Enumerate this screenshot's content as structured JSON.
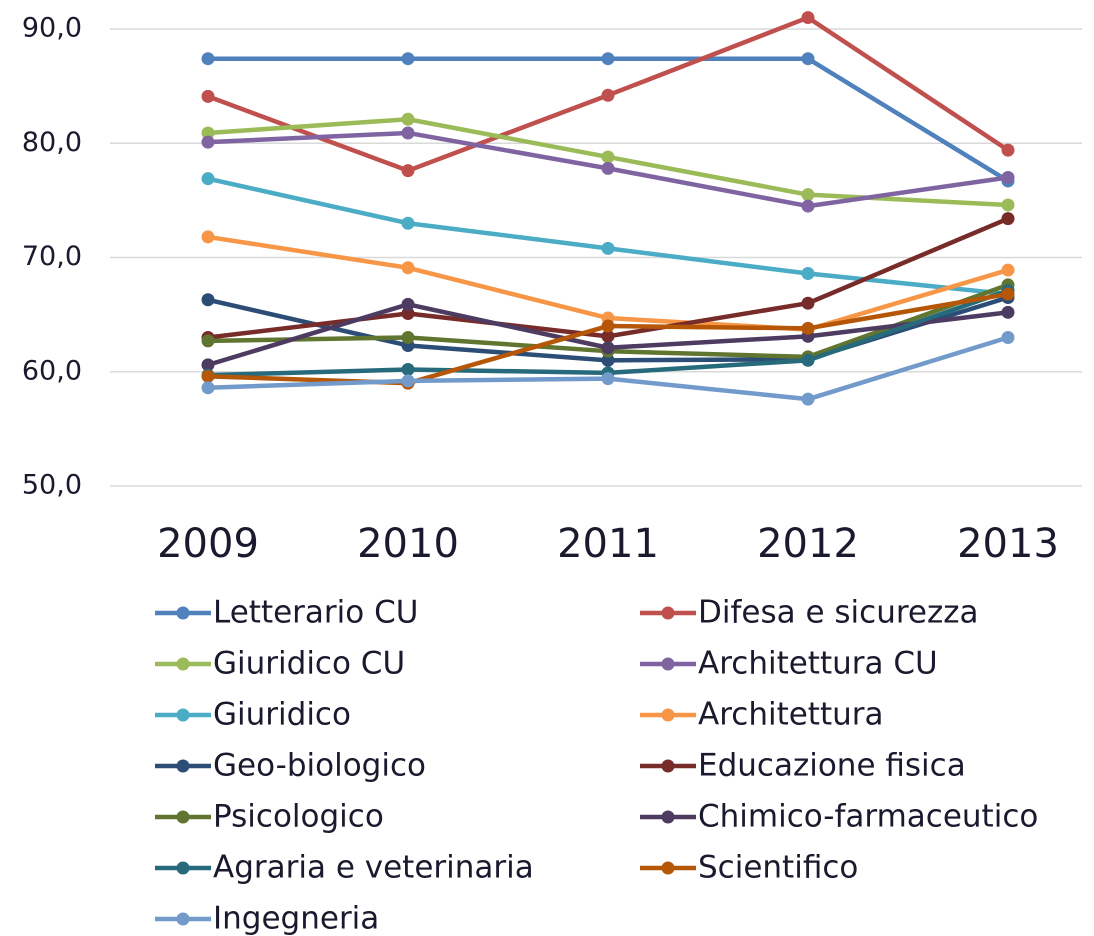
{
  "chart_data": {
    "type": "line",
    "categories": [
      "2009",
      "2010",
      "2011",
      "2012",
      "2013"
    ],
    "ylim": [
      50,
      90
    ],
    "yticks": [
      {
        "value": 50,
        "label": "50,0"
      },
      {
        "value": 60,
        "label": "60,0"
      },
      {
        "value": 70,
        "label": "70,0"
      },
      {
        "value": 80,
        "label": "80,0"
      },
      {
        "value": 90,
        "label": "90,0"
      }
    ],
    "grid": true,
    "legend": "bottom",
    "series": [
      {
        "name": "Letterario CU",
        "color": "#4f81bd",
        "values": [
          87.4,
          87.4,
          87.4,
          87.4,
          76.7
        ]
      },
      {
        "name": "Difesa e sicurezza",
        "color": "#c0504d",
        "values": [
          84.1,
          77.6,
          84.2,
          91.0,
          79.4
        ]
      },
      {
        "name": "Giuridico CU",
        "color": "#9bbb59",
        "values": [
          80.9,
          82.1,
          78.8,
          75.5,
          74.6
        ]
      },
      {
        "name": "Architettura CU",
        "color": "#8064a2",
        "values": [
          80.1,
          80.9,
          77.8,
          74.5,
          77.0
        ]
      },
      {
        "name": "Giuridico",
        "color": "#4bacc6",
        "values": [
          76.9,
          73.0,
          70.8,
          68.6,
          66.8
        ]
      },
      {
        "name": "Architettura",
        "color": "#f79646",
        "values": [
          71.8,
          69.1,
          64.7,
          63.7,
          68.9
        ]
      },
      {
        "name": "Geo-biologico",
        "color": "#2c4d75",
        "values": [
          66.3,
          62.3,
          61.0,
          61.1,
          66.5
        ]
      },
      {
        "name": "Educazione fisica",
        "color": "#772c2a",
        "values": [
          63.0,
          65.1,
          63.1,
          66.0,
          73.4
        ]
      },
      {
        "name": "Psicologico",
        "color": "#5f7530",
        "values": [
          62.7,
          63.0,
          61.8,
          61.3,
          67.6
        ]
      },
      {
        "name": "Chimico-farmaceutico",
        "color": "#4d3b62",
        "values": [
          60.6,
          65.9,
          62.1,
          63.1,
          65.2
        ]
      },
      {
        "name": "Agraria e veterinaria",
        "color": "#276a7c",
        "values": [
          59.7,
          60.2,
          59.9,
          61.0,
          67.1
        ]
      },
      {
        "name": "Scientifico",
        "color": "#b65708",
        "values": [
          59.6,
          59.0,
          64.0,
          63.8,
          66.8
        ]
      },
      {
        "name": "Ingegneria",
        "color": "#729aca",
        "values": [
          58.6,
          59.2,
          59.4,
          57.6,
          63.0
        ]
      }
    ]
  }
}
